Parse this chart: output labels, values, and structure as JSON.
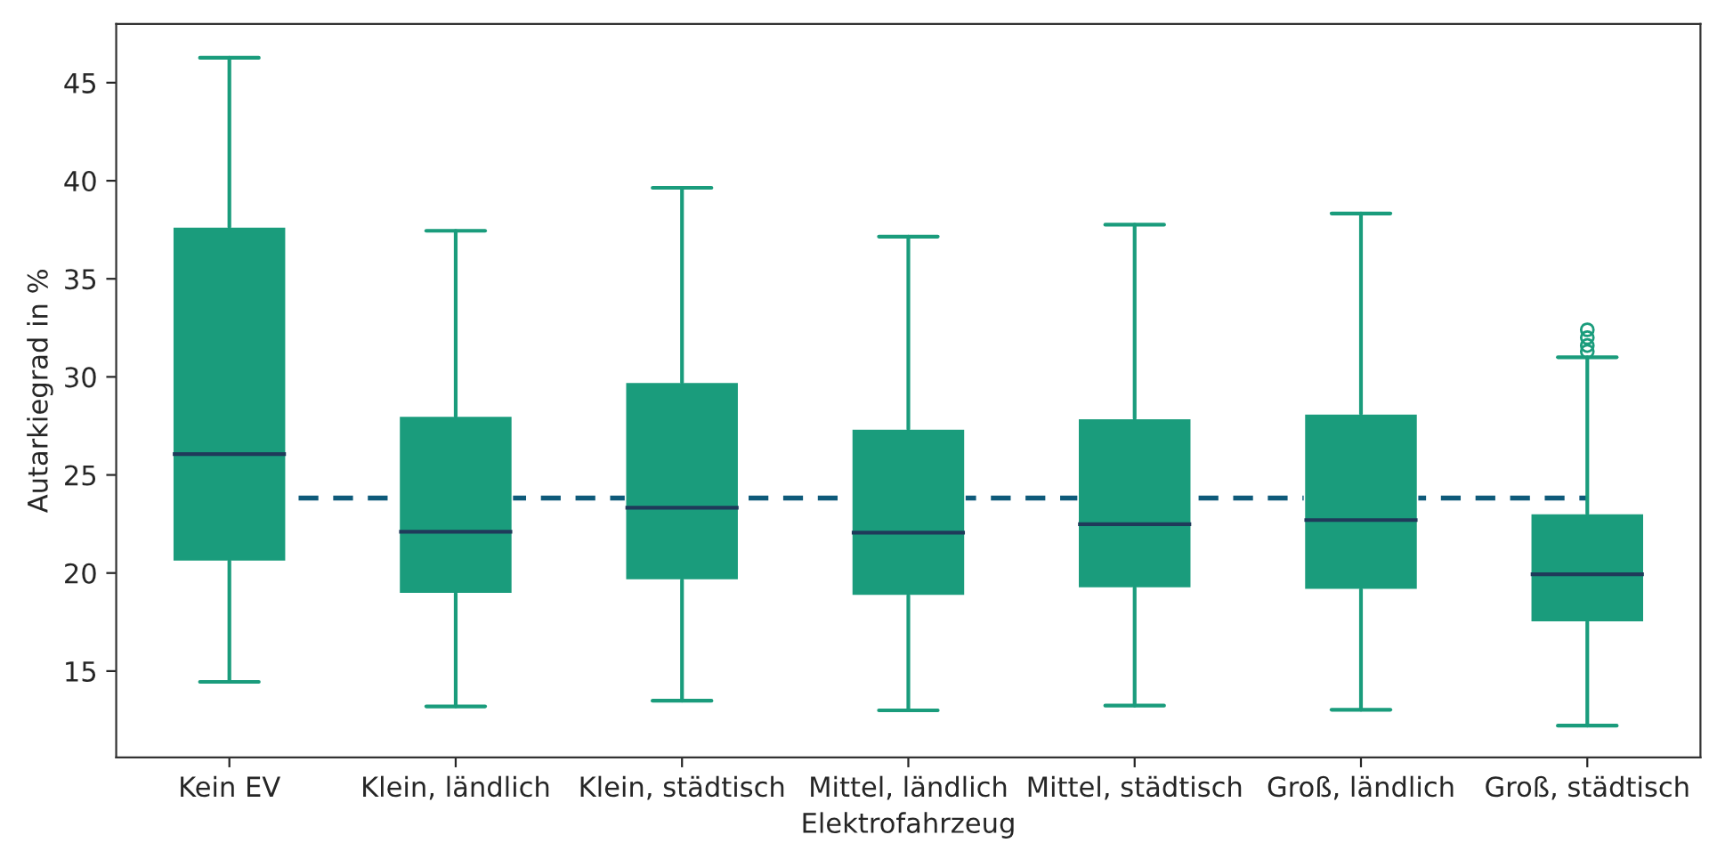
{
  "chart_data": {
    "type": "box",
    "xlabel": "Elektrofahrzeug",
    "ylabel": "Autarkiegrad in %",
    "categories": [
      "Kein EV",
      "Klein, ländlich",
      "Klein, städtisch",
      "Mittel, ländlich",
      "Mittel, städtisch",
      "Groß, ländlich",
      "Groß, städtisch"
    ],
    "color": "#1a9c7c",
    "boxes": [
      {
        "low": 14.45,
        "q1": 20.6,
        "median": 26.06,
        "q3": 37.64,
        "high": 46.27
      },
      {
        "low": 13.2,
        "q1": 18.95,
        "median": 22.1,
        "q3": 28.0,
        "high": 37.45
      },
      {
        "low": 13.49,
        "q1": 19.64,
        "median": 23.33,
        "q3": 29.73,
        "high": 39.64
      },
      {
        "low": 13.0,
        "q1": 18.85,
        "median": 22.06,
        "q3": 27.34,
        "high": 37.15
      },
      {
        "low": 13.24,
        "q1": 19.24,
        "median": 22.49,
        "q3": 27.88,
        "high": 37.76
      },
      {
        "low": 13.03,
        "q1": 19.15,
        "median": 22.7,
        "q3": 28.12,
        "high": 38.33
      },
      {
        "low": 12.22,
        "q1": 17.5,
        "median": 19.94,
        "q3": 23.03,
        "high": 31.0,
        "outliers": [
          31.3,
          31.6,
          32.0,
          32.4
        ]
      }
    ],
    "ref_lines": [
      {
        "axis": "y",
        "value": 23.82,
        "label": null,
        "color": "#0e5a7a",
        "line_style": "dashed"
      }
    ],
    "ylim": [
      10.6,
      48.0
    ],
    "yticks": [
      15,
      20,
      25,
      30,
      35,
      40,
      45
    ],
    "grid": false
  }
}
